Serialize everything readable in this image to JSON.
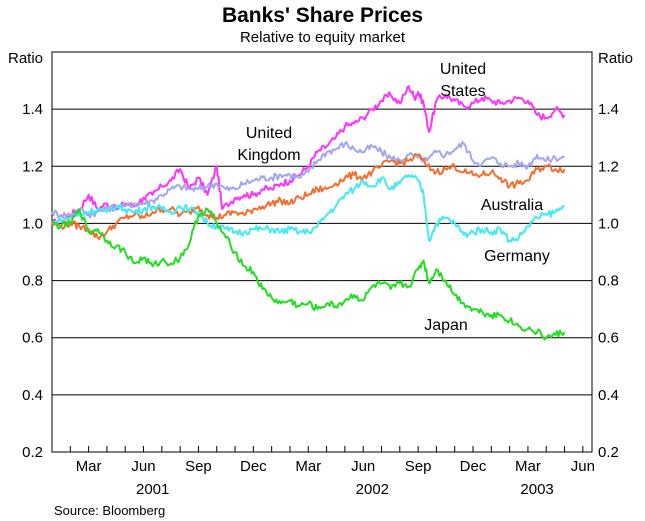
{
  "chart_data": {
    "type": "line",
    "title": "Banks' Share Prices",
    "subtitle": "Relative to equity market",
    "ylabel_left": "Ratio",
    "ylabel_right": "Ratio",
    "ylim": [
      0.2,
      1.6
    ],
    "yticks": [
      "0.2",
      "0.4",
      "0.6",
      "0.8",
      "1.0",
      "1.2",
      "1.4"
    ],
    "x_range_months": [
      0,
      29.5
    ],
    "month_ticks": [
      {
        "label": "Mar",
        "m": 2
      },
      {
        "label": "Jun",
        "m": 5
      },
      {
        "label": "Sep",
        "m": 8
      },
      {
        "label": "Dec",
        "m": 11
      },
      {
        "label": "Mar",
        "m": 14
      },
      {
        "label": "Jun",
        "m": 17
      },
      {
        "label": "Sep",
        "m": 20
      },
      {
        "label": "Dec",
        "m": 23
      },
      {
        "label": "Mar",
        "m": 26
      },
      {
        "label": "Jun",
        "m": 29
      }
    ],
    "year_labels": [
      {
        "label": "2001",
        "m": 5.5
      },
      {
        "label": "2002",
        "m": 17.5
      },
      {
        "label": "2003",
        "m": 26.5
      }
    ],
    "series": [
      {
        "name": "United States",
        "color": "#ff33ff",
        "points": [
          [
            0,
            1.0
          ],
          [
            0.5,
            1.01
          ],
          [
            1,
            1.03
          ],
          [
            1.5,
            1.05
          ],
          [
            2,
            1.1
          ],
          [
            2.5,
            1.05
          ],
          [
            3,
            1.07
          ],
          [
            3.5,
            1.05
          ],
          [
            4,
            1.07
          ],
          [
            4.5,
            1.06
          ],
          [
            5,
            1.09
          ],
          [
            5.5,
            1.1
          ],
          [
            6,
            1.13
          ],
          [
            6.5,
            1.15
          ],
          [
            7,
            1.19
          ],
          [
            7.5,
            1.12
          ],
          [
            8,
            1.16
          ],
          [
            8.5,
            1.1
          ],
          [
            9,
            1.2
          ],
          [
            9.3,
            1.05
          ],
          [
            10,
            1.09
          ],
          [
            10.5,
            1.1
          ],
          [
            11,
            1.1
          ],
          [
            11.5,
            1.12
          ],
          [
            12,
            1.12
          ],
          [
            12.5,
            1.14
          ],
          [
            13,
            1.15
          ],
          [
            13.5,
            1.17
          ],
          [
            14,
            1.2
          ],
          [
            14.5,
            1.25
          ],
          [
            15,
            1.27
          ],
          [
            15.5,
            1.3
          ],
          [
            16,
            1.34
          ],
          [
            16.5,
            1.35
          ],
          [
            17,
            1.37
          ],
          [
            17.5,
            1.4
          ],
          [
            18,
            1.43
          ],
          [
            18.5,
            1.45
          ],
          [
            19,
            1.42
          ],
          [
            19.5,
            1.48
          ],
          [
            19.8,
            1.44
          ],
          [
            20,
            1.46
          ],
          [
            20.3,
            1.42
          ],
          [
            20.6,
            1.32
          ],
          [
            21,
            1.43
          ],
          [
            21.5,
            1.45
          ],
          [
            22,
            1.43
          ],
          [
            22.5,
            1.41
          ],
          [
            23,
            1.42
          ],
          [
            23.5,
            1.44
          ],
          [
            24,
            1.43
          ],
          [
            24.5,
            1.42
          ],
          [
            25,
            1.43
          ],
          [
            25.5,
            1.44
          ],
          [
            26,
            1.43
          ],
          [
            26.5,
            1.38
          ],
          [
            27,
            1.37
          ],
          [
            27.5,
            1.4
          ],
          [
            28,
            1.38
          ]
        ]
      },
      {
        "name": "United Kingdom",
        "color": "#a3a6f0",
        "points": [
          [
            0,
            1.04
          ],
          [
            0.5,
            1.03
          ],
          [
            1,
            1.03
          ],
          [
            1.5,
            1.05
          ],
          [
            2,
            1.03
          ],
          [
            2.5,
            1.04
          ],
          [
            3,
            1.05
          ],
          [
            3.5,
            1.06
          ],
          [
            4,
            1.06
          ],
          [
            4.5,
            1.07
          ],
          [
            5,
            1.07
          ],
          [
            5.5,
            1.08
          ],
          [
            6,
            1.1
          ],
          [
            6.5,
            1.12
          ],
          [
            7,
            1.13
          ],
          [
            7.5,
            1.12
          ],
          [
            8,
            1.12
          ],
          [
            8.5,
            1.13
          ],
          [
            9,
            1.14
          ],
          [
            9.5,
            1.12
          ],
          [
            10,
            1.12
          ],
          [
            10.5,
            1.14
          ],
          [
            11,
            1.15
          ],
          [
            11.5,
            1.16
          ],
          [
            12,
            1.16
          ],
          [
            12.5,
            1.17
          ],
          [
            13,
            1.17
          ],
          [
            13.5,
            1.16
          ],
          [
            14,
            1.18
          ],
          [
            14.5,
            1.22
          ],
          [
            15,
            1.25
          ],
          [
            15.5,
            1.26
          ],
          [
            16,
            1.28
          ],
          [
            16.5,
            1.26
          ],
          [
            17,
            1.25
          ],
          [
            17.5,
            1.27
          ],
          [
            18,
            1.25
          ],
          [
            18.5,
            1.23
          ],
          [
            19,
            1.22
          ],
          [
            19.5,
            1.24
          ],
          [
            20,
            1.23
          ],
          [
            20.5,
            1.22
          ],
          [
            21,
            1.25
          ],
          [
            21.5,
            1.24
          ],
          [
            22,
            1.26
          ],
          [
            22.5,
            1.28
          ],
          [
            23,
            1.22
          ],
          [
            23.5,
            1.21
          ],
          [
            24,
            1.23
          ],
          [
            24.5,
            1.21
          ],
          [
            25,
            1.2
          ],
          [
            25.5,
            1.21
          ],
          [
            26,
            1.2
          ],
          [
            26.5,
            1.24
          ],
          [
            27,
            1.22
          ],
          [
            27.5,
            1.23
          ],
          [
            28,
            1.23
          ]
        ]
      },
      {
        "name": "Australia",
        "color": "#f07030",
        "points": [
          [
            0,
            1.0
          ],
          [
            0.5,
            0.99
          ],
          [
            1,
            1.0
          ],
          [
            1.5,
            0.99
          ],
          [
            2,
            0.98
          ],
          [
            2.5,
            0.95
          ],
          [
            3,
            0.97
          ],
          [
            3.5,
            1.0
          ],
          [
            4,
            1.02
          ],
          [
            4.5,
            1.03
          ],
          [
            5,
            1.02
          ],
          [
            5.5,
            1.04
          ],
          [
            6,
            1.05
          ],
          [
            6.5,
            1.05
          ],
          [
            7,
            1.03
          ],
          [
            7.5,
            1.04
          ],
          [
            8,
            1.06
          ],
          [
            8.5,
            1.03
          ],
          [
            9,
            1.02
          ],
          [
            9.5,
            1.03
          ],
          [
            10,
            1.04
          ],
          [
            10.5,
            1.03
          ],
          [
            11,
            1.05
          ],
          [
            11.5,
            1.06
          ],
          [
            12,
            1.07
          ],
          [
            12.5,
            1.08
          ],
          [
            13,
            1.07
          ],
          [
            13.5,
            1.09
          ],
          [
            14,
            1.1
          ],
          [
            14.5,
            1.12
          ],
          [
            15,
            1.12
          ],
          [
            15.5,
            1.14
          ],
          [
            16,
            1.16
          ],
          [
            16.5,
            1.17
          ],
          [
            17,
            1.16
          ],
          [
            17.5,
            1.18
          ],
          [
            18,
            1.2
          ],
          [
            18.5,
            1.22
          ],
          [
            19,
            1.21
          ],
          [
            19.5,
            1.22
          ],
          [
            20,
            1.24
          ],
          [
            20.5,
            1.2
          ],
          [
            21,
            1.18
          ],
          [
            21.5,
            1.19
          ],
          [
            22,
            1.2
          ],
          [
            22.5,
            1.18
          ],
          [
            23,
            1.17
          ],
          [
            23.5,
            1.17
          ],
          [
            24,
            1.18
          ],
          [
            24.5,
            1.16
          ],
          [
            25,
            1.13
          ],
          [
            25.5,
            1.14
          ],
          [
            26,
            1.15
          ],
          [
            26.5,
            1.19
          ],
          [
            27,
            1.2
          ],
          [
            27.5,
            1.19
          ],
          [
            28,
            1.19
          ]
        ]
      },
      {
        "name": "Germany",
        "color": "#44eaf0",
        "points": [
          [
            0,
            1.0
          ],
          [
            0.5,
            1.01
          ],
          [
            1,
            1.02
          ],
          [
            1.5,
            1.03
          ],
          [
            2,
            1.04
          ],
          [
            2.5,
            1.05
          ],
          [
            3,
            1.04
          ],
          [
            3.5,
            1.06
          ],
          [
            4,
            1.05
          ],
          [
            4.5,
            1.04
          ],
          [
            5,
            1.05
          ],
          [
            5.5,
            1.06
          ],
          [
            6,
            1.05
          ],
          [
            6.5,
            1.04
          ],
          [
            7,
            1.06
          ],
          [
            7.5,
            1.05
          ],
          [
            8,
            1.04
          ],
          [
            8.5,
            1.0
          ],
          [
            9,
            0.99
          ],
          [
            9.5,
            0.98
          ],
          [
            10,
            0.97
          ],
          [
            10.5,
            0.97
          ],
          [
            11,
            0.98
          ],
          [
            11.5,
            0.98
          ],
          [
            12,
            0.98
          ],
          [
            12.5,
            0.97
          ],
          [
            13,
            0.98
          ],
          [
            13.5,
            0.97
          ],
          [
            14,
            0.97
          ],
          [
            14.5,
            0.99
          ],
          [
            15,
            1.03
          ],
          [
            15.5,
            1.06
          ],
          [
            16,
            1.1
          ],
          [
            16.5,
            1.12
          ],
          [
            17,
            1.15
          ],
          [
            17.5,
            1.13
          ],
          [
            18,
            1.16
          ],
          [
            18.5,
            1.12
          ],
          [
            19,
            1.14
          ],
          [
            19.5,
            1.17
          ],
          [
            20,
            1.15
          ],
          [
            20.3,
            1.1
          ],
          [
            20.6,
            0.94
          ],
          [
            21,
            1.0
          ],
          [
            21.5,
            1.02
          ],
          [
            22,
            1.0
          ],
          [
            22.5,
            0.96
          ],
          [
            23,
            0.97
          ],
          [
            23.5,
            0.98
          ],
          [
            24,
            0.97
          ],
          [
            24.5,
            0.98
          ],
          [
            25,
            0.94
          ],
          [
            25.5,
            0.95
          ],
          [
            26,
            0.99
          ],
          [
            26.5,
            1.02
          ],
          [
            27,
            1.03
          ],
          [
            27.5,
            1.04
          ],
          [
            28,
            1.06
          ]
        ]
      },
      {
        "name": "Japan",
        "color": "#22dd22",
        "points": [
          [
            0,
            1.0
          ],
          [
            0.5,
            0.99
          ],
          [
            1,
            1.0
          ],
          [
            1.5,
            1.05
          ],
          [
            2,
            0.97
          ],
          [
            2.5,
            0.98
          ],
          [
            3,
            0.94
          ],
          [
            3.5,
            0.92
          ],
          [
            4,
            0.9
          ],
          [
            4.5,
            0.86
          ],
          [
            5,
            0.88
          ],
          [
            5.5,
            0.85
          ],
          [
            6,
            0.87
          ],
          [
            6.5,
            0.86
          ],
          [
            7,
            0.88
          ],
          [
            7.5,
            0.93
          ],
          [
            8,
            1.03
          ],
          [
            8.5,
            1.05
          ],
          [
            9,
            1.0
          ],
          [
            9.5,
            0.95
          ],
          [
            10,
            0.9
          ],
          [
            10.5,
            0.85
          ],
          [
            11,
            0.83
          ],
          [
            11.5,
            0.77
          ],
          [
            12,
            0.74
          ],
          [
            12.5,
            0.72
          ],
          [
            13,
            0.73
          ],
          [
            13.5,
            0.71
          ],
          [
            14,
            0.72
          ],
          [
            14.5,
            0.7
          ],
          [
            15,
            0.72
          ],
          [
            15.5,
            0.71
          ],
          [
            16,
            0.73
          ],
          [
            16.5,
            0.75
          ],
          [
            17,
            0.73
          ],
          [
            17.5,
            0.78
          ],
          [
            18,
            0.79
          ],
          [
            18.5,
            0.77
          ],
          [
            19,
            0.79
          ],
          [
            19.5,
            0.78
          ],
          [
            20,
            0.84
          ],
          [
            20.3,
            0.87
          ],
          [
            20.6,
            0.79
          ],
          [
            21,
            0.84
          ],
          [
            21.5,
            0.8
          ],
          [
            22,
            0.75
          ],
          [
            22.5,
            0.72
          ],
          [
            23,
            0.7
          ],
          [
            23.5,
            0.69
          ],
          [
            24,
            0.68
          ],
          [
            24.5,
            0.68
          ],
          [
            25,
            0.66
          ],
          [
            25.5,
            0.64
          ],
          [
            26,
            0.63
          ],
          [
            26.5,
            0.62
          ],
          [
            27,
            0.6
          ],
          [
            27.5,
            0.61
          ],
          [
            28,
            0.62
          ]
        ]
      }
    ],
    "annotations": [
      {
        "series": "United States",
        "lines": [
          "United",
          "States"
        ]
      },
      {
        "series": "United Kingdom",
        "lines": [
          "United",
          "Kingdom"
        ]
      },
      {
        "series": "Australia",
        "lines": [
          "Australia"
        ]
      },
      {
        "series": "Germany",
        "lines": [
          "Germany"
        ]
      },
      {
        "series": "Japan",
        "lines": [
          "Japan"
        ]
      }
    ],
    "source": "Source: Bloomberg"
  }
}
